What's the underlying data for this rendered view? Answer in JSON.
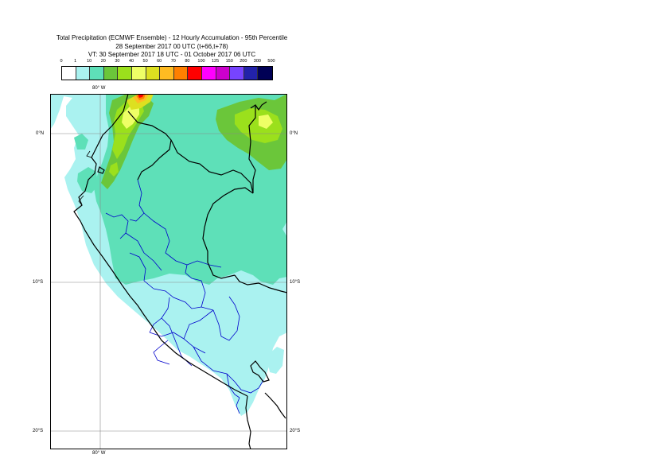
{
  "title": {
    "line1": "Total Precipitation (ECMWF Ensemble) - 12 Hourly Accumulation - 95th Percentile",
    "line2": "28 September 2017 00 UTC (t+66,t+78)",
    "line3": "VT: 30 September 2017 18 UTC - 01 October 2017 06 UTC"
  },
  "legend": {
    "thresholds": [
      "0",
      "1",
      "10",
      "20",
      "30",
      "40",
      "50",
      "60",
      "70",
      "80",
      "100",
      "125",
      "150",
      "200",
      "300",
      "500"
    ],
    "colors": [
      "#ffffff",
      "#aaf2f0",
      "#5ee0b8",
      "#6bc63a",
      "#9be01c",
      "#eeff66",
      "#dde020",
      "#ffbb22",
      "#ff7f00",
      "#ff0000",
      "#ff00ff",
      "#cc00cc",
      "#7744ff",
      "#2222aa",
      "#000055"
    ]
  },
  "map": {
    "lon_labels": {
      "top": "80° W",
      "bottom": "80° W"
    },
    "lat_labels": [
      "0°N",
      "10°S",
      "20°S"
    ]
  }
}
